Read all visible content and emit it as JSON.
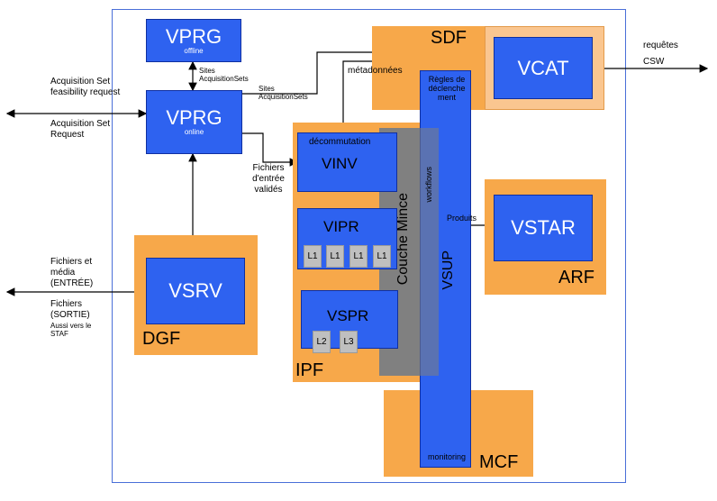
{
  "blocks": {
    "vprg_offline": {
      "name": "VPRG",
      "sub": "offline"
    },
    "vprg_online": {
      "name": "VPRG",
      "sub": "online"
    },
    "vsrv": "VSRV",
    "vcat": "VCAT",
    "vinv": "VINV",
    "vinv_sub": "décommutation",
    "vipr": "VIPR",
    "vspr": "VSPR",
    "vstar": "VSTAR",
    "vsup": "VSUP",
    "couche_mince": "Couche Mince",
    "workflows": "workflows",
    "regles": "Règles de déclenche ment",
    "monitoring": "monitoring",
    "l1": "L1",
    "l2": "L2",
    "l3": "L3"
  },
  "zones": {
    "sdf": "SDF",
    "dgf": "DGF",
    "ipf": "IPF",
    "arf": "ARF",
    "mcf": "MCF"
  },
  "labels": {
    "acq_feasibility": "Acquisition Set feasibility request",
    "acq_request": "Acquisition Set Request",
    "fichiers_media": "Fichiers et média (ENTRÉE)",
    "fichiers_sortie": "Fichiers (SORTIE)",
    "aussi_staf": "Aussi vers le STAF",
    "sites_acq1": "Sites AcquisitionSets",
    "sites_acq2": "Sites AcquisitionSets",
    "fichiers_valides": "Fichiers d'entrée validés",
    "metadonnees": "métadonnées",
    "requetes": "requêtes",
    "csw": "CSW",
    "produits": "Produits"
  }
}
